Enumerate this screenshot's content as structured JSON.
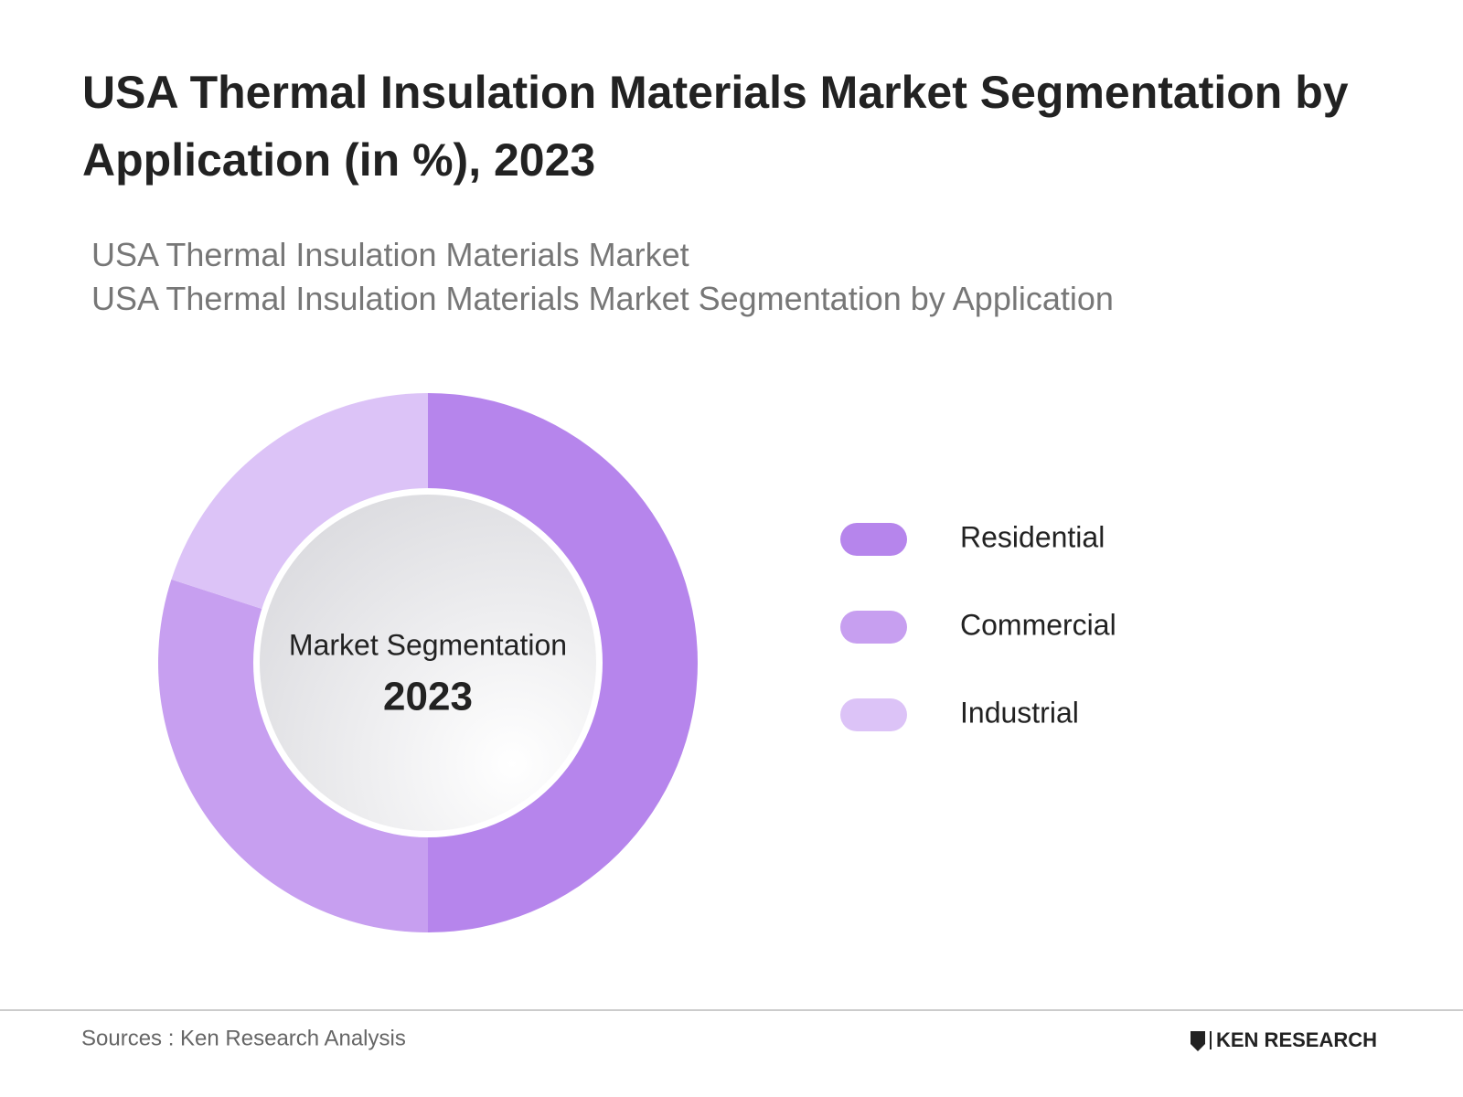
{
  "chart_data": {
    "type": "donut",
    "title": "USA Thermal Insulation Materials Market Segmentation by Application (in %), 2023",
    "subtitles": [
      "USA Thermal Insulation Materials Market",
      "USA Thermal Insulation Materials Market Segmentation by Application"
    ],
    "center_text": [
      "Market Segmentation",
      "2023"
    ],
    "categories": [
      "Residential",
      "Commercial",
      "Industrial"
    ],
    "values": [
      50,
      30,
      20
    ],
    "colors": [
      "#b685ec",
      "#c79ff0",
      "#dcc3f7"
    ],
    "source": "Sources : Ken Research Analysis",
    "brand": "KEN RESEARCH"
  }
}
